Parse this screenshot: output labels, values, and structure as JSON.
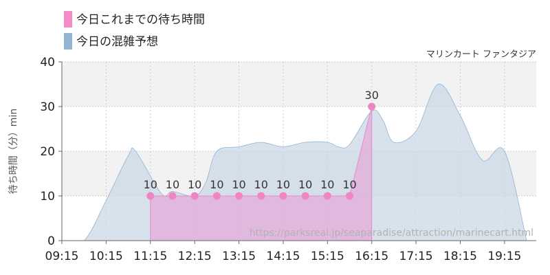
{
  "chart_data": {
    "type": "area",
    "ylabel": "待ち時間（分）min",
    "ylim": [
      0,
      40
    ],
    "y_ticks": [
      "0",
      "10",
      "20",
      "30",
      "40"
    ],
    "x_tick_labels": [
      "09:15",
      "10:15",
      "11:15",
      "12:15",
      "13:15",
      "14:15",
      "15:15",
      "16:15",
      "17:15",
      "18:15",
      "19:15"
    ],
    "attraction": "マリンカート ファンタジア",
    "watermark": "https://parksreal.jp/seaparadise/attraction/marinecart.html",
    "legend": {
      "placement": "top-left",
      "entries": [
        {
          "label": "今日これまでの待ち時間",
          "color": "#f48ac8"
        },
        {
          "label": "今日の混雑予想",
          "color": "#92b3d1"
        }
      ]
    },
    "grid": true,
    "series": [
      {
        "name": "今日の混雑予想",
        "kind": "area",
        "color": "#92b3d1",
        "x": [
          "09:15",
          "09:45",
          "10:15",
          "10:45",
          "10:55",
          "11:30",
          "11:45",
          "12:15",
          "12:30",
          "12:45",
          "13:15",
          "13:45",
          "14:15",
          "14:45",
          "15:15",
          "15:30",
          "15:45",
          "16:15",
          "16:30",
          "16:45",
          "17:15",
          "17:45",
          "18:15",
          "18:45",
          "19:15",
          "19:45"
        ],
        "values": [
          0,
          0,
          9,
          19,
          20,
          10.5,
          11,
          10,
          13,
          20,
          21,
          22,
          21,
          22,
          22,
          21,
          21.5,
          29,
          27,
          22,
          24.5,
          35,
          28,
          18,
          20,
          0
        ]
      },
      {
        "name": "今日これまでの待ち時間",
        "kind": "area-points",
        "color": "#f48ac8",
        "x": [
          "11:15",
          "11:45",
          "12:15",
          "12:45",
          "13:15",
          "13:45",
          "14:15",
          "14:45",
          "15:15",
          "15:45",
          "16:15"
        ],
        "values": [
          10,
          10,
          10,
          10,
          10,
          10,
          10,
          10,
          10,
          10,
          30
        ],
        "labels": [
          "10",
          "10",
          "10",
          "10",
          "10",
          "10",
          "10",
          "10",
          "10",
          "10",
          "30"
        ]
      }
    ]
  }
}
